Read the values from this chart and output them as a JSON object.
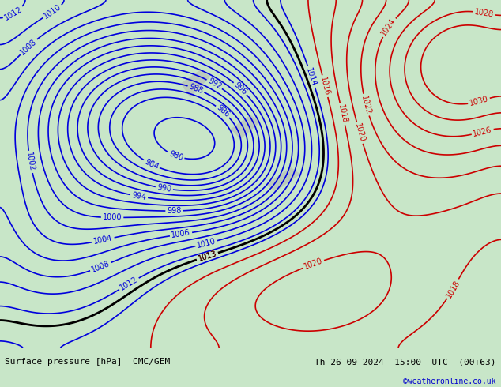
{
  "title_left": "Surface pressure [hPa]  CMC/GEM",
  "title_right": "Th 26-09-2024  15:00  UTC  (00+63)",
  "credit": "©weatheronline.co.uk",
  "bg_color": "#c8e6c8",
  "land_color": "#c8e6a0",
  "sea_color": "#b0d4b0",
  "fig_width": 6.34,
  "fig_height": 4.9,
  "dpi": 100,
  "bottom_bar_color": "#ffffff",
  "bottom_bar_height": 0.1,
  "contour_levels_blue": [
    980,
    984,
    986,
    988,
    990,
    992,
    994,
    996,
    998,
    1000,
    1002,
    1004,
    1006,
    1008,
    1010,
    1012,
    1014
  ],
  "contour_levels_red": [
    1013,
    1016,
    1018,
    1020,
    1022,
    1024,
    1026,
    1028,
    1030
  ],
  "contour_level_black": [
    1013
  ],
  "label_fontsize": 7,
  "footer_fontsize": 8,
  "credit_fontsize": 7,
  "credit_color": "#0000cc"
}
